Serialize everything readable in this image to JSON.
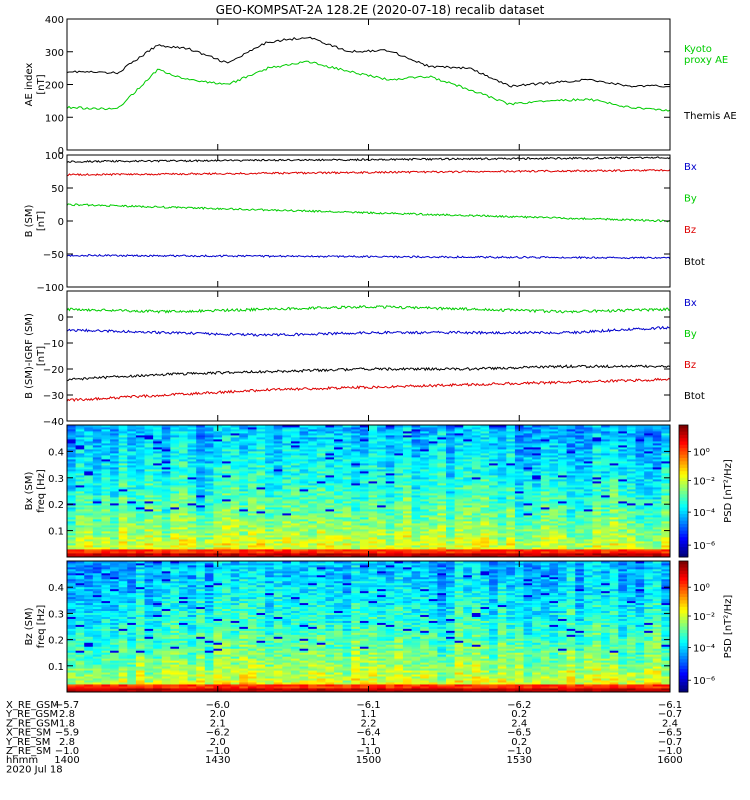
{
  "title": "GEO-KOMPSAT-2A 128.2E (2020-07-18) recalib dataset",
  "chart_data": [
    {
      "type": "line",
      "ylabel": [
        "AE index",
        "[nT]"
      ],
      "ylim": [
        0,
        400
      ],
      "yticks": [
        0,
        100,
        200,
        300,
        400
      ],
      "x": [
        0,
        5,
        9,
        12,
        16,
        20,
        24,
        28,
        32,
        36,
        40,
        44,
        48,
        52,
        56,
        60
      ],
      "series": [
        {
          "name": "Themis AE",
          "color": "#000000",
          "values": [
            240,
            235,
            320,
            310,
            265,
            330,
            345,
            300,
            305,
            255,
            250,
            195,
            205,
            215,
            195,
            195
          ]
        },
        {
          "name": "Kyoto proxy AE",
          "color": "#00cc00",
          "values": [
            130,
            125,
            245,
            215,
            200,
            250,
            270,
            240,
            215,
            225,
            185,
            140,
            150,
            155,
            130,
            120
          ]
        }
      ],
      "legend": [
        {
          "text": "Kyoto",
          "color": "#00cc00"
        },
        {
          "text": "proxy AE",
          "color": "#00cc00"
        },
        {
          "text": "Themis AE",
          "color": "#000000"
        }
      ]
    },
    {
      "type": "line",
      "ylabel": [
        "B (SM)",
        "[nT]"
      ],
      "ylim": [
        -100,
        100
      ],
      "yticks": [
        -100,
        -50,
        0,
        50,
        100
      ],
      "x": [
        0,
        120
      ],
      "series": [
        {
          "name": "Btot",
          "color": "#000000",
          "values": [
            90,
            96
          ]
        },
        {
          "name": "Bz",
          "color": "#dd0000",
          "values": [
            70,
            77
          ]
        },
        {
          "name": "By",
          "color": "#00cc00",
          "values": [
            25,
            0
          ]
        },
        {
          "name": "Bx",
          "color": "#0000cc",
          "values": [
            -52,
            -56
          ]
        }
      ],
      "legend": [
        {
          "text": "Bx",
          "color": "#0000cc"
        },
        {
          "text": "By",
          "color": "#00cc00"
        },
        {
          "text": "Bz",
          "color": "#dd0000"
        },
        {
          "text": "Btot",
          "color": "#000000"
        }
      ]
    },
    {
      "type": "line",
      "ylabel": [
        "B (SM)-IGRF (SM)",
        "[nT]"
      ],
      "ylim": [
        -40,
        10
      ],
      "yticks": [
        -40,
        -30,
        -20,
        -10,
        0
      ],
      "x": [
        0,
        20,
        40,
        60,
        80,
        100,
        120
      ],
      "series": [
        {
          "name": "By",
          "color": "#00cc00",
          "values": [
            3,
            2,
            3,
            4,
            3,
            2,
            3
          ]
        },
        {
          "name": "Bx",
          "color": "#0000cc",
          "values": [
            -5,
            -6,
            -7,
            -6,
            -6,
            -6,
            -4
          ]
        },
        {
          "name": "Btot",
          "color": "#000000",
          "values": [
            -24,
            -22,
            -21,
            -20,
            -20,
            -19,
            -19
          ]
        },
        {
          "name": "Bz",
          "color": "#dd0000",
          "values": [
            -32,
            -30,
            -28,
            -27,
            -26,
            -25,
            -24
          ]
        }
      ],
      "legend": [
        {
          "text": "Bx",
          "color": "#0000cc"
        },
        {
          "text": "By",
          "color": "#00cc00"
        },
        {
          "text": "Bz",
          "color": "#dd0000"
        },
        {
          "text": "Btot",
          "color": "#000000"
        }
      ]
    },
    {
      "type": "heatmap",
      "ylabel": [
        "Bx (SM)",
        "freq [Hz]"
      ],
      "ylim": [
        0,
        0.5
      ],
      "yticks": [
        0.1,
        0.2,
        0.3,
        0.4
      ],
      "colorbar_label": "PSD [nT²/Hz]",
      "colorbar_ticks": [
        "10⁰",
        "10⁻²",
        "10⁻⁴",
        "10⁻⁶"
      ]
    },
    {
      "type": "heatmap",
      "ylabel": [
        "Bz (SM)",
        "freq [Hz]"
      ],
      "ylim": [
        0,
        0.5
      ],
      "yticks": [
        0.1,
        0.2,
        0.3,
        0.4
      ],
      "colorbar_label": "PSD [nT²/Hz]",
      "colorbar_ticks": [
        "10⁰",
        "10⁻²",
        "10⁻⁴",
        "10⁻⁶"
      ]
    }
  ],
  "x_axis": {
    "row_labels": [
      "X_RE_GSM",
      "Y_RE_GSM",
      "Z_RE_GSM",
      "X_RE_SM",
      "Y_RE_SM",
      "Z_RE_SM",
      "hhmm"
    ],
    "date": "2020 Jul 18",
    "ticks": [
      {
        "values": [
          "−5.7",
          "2.8",
          "1.8",
          "−5.9",
          "2.8",
          "−1.0",
          "1400"
        ]
      },
      {
        "values": [
          "−6.0",
          "2.0",
          "2.1",
          "−6.2",
          "2.0",
          "−1.0",
          "1430"
        ]
      },
      {
        "values": [
          "−6.1",
          "1.1",
          "2.2",
          "−6.4",
          "1.1",
          "−1.0",
          "1500"
        ]
      },
      {
        "values": [
          "−6.2",
          "0.2",
          "2.4",
          "−6.5",
          "0.2",
          "−1.0",
          "1530"
        ]
      },
      {
        "values": [
          "−6.1",
          "−0.7",
          "2.4",
          "−6.5",
          "−0.7",
          "−1.0",
          "1600"
        ]
      }
    ]
  }
}
